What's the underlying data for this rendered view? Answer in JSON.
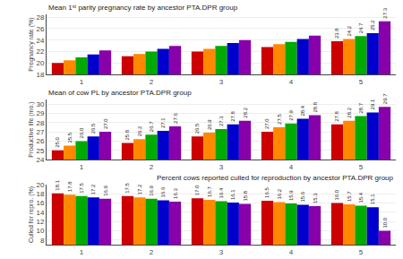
{
  "chart_data": [
    {
      "type": "bar",
      "title": "Mean 1ˢᵗ parity pregnancy rate by ancestor PTA.DPR group",
      "ylabel": "Pregnancy rate (%)",
      "categories": [
        "1",
        "2",
        "3",
        "4",
        "5"
      ],
      "series": [
        {
          "color": "#cc0000",
          "values": [
            20.0,
            21.2,
            22.0,
            22.8,
            23.8
          ],
          "value_labels": [
            null,
            null,
            null,
            null,
            "23.8"
          ]
        },
        {
          "color": "#ff8800",
          "values": [
            20.5,
            21.6,
            22.5,
            23.3,
            24.2
          ],
          "value_labels": [
            null,
            null,
            null,
            null,
            "24.2"
          ]
        },
        {
          "color": "#00aa00",
          "values": [
            21.0,
            22.0,
            23.0,
            23.7,
            24.7
          ],
          "value_labels": [
            null,
            null,
            null,
            null,
            "24.7"
          ]
        },
        {
          "color": "#0000cc",
          "values": [
            21.5,
            22.5,
            23.5,
            24.2,
            25.2
          ],
          "value_labels": [
            null,
            null,
            null,
            null,
            "25.2"
          ]
        },
        {
          "color": "#8800aa",
          "values": [
            22.2,
            23.0,
            24.0,
            24.8,
            27.3
          ],
          "value_labels": [
            null,
            null,
            null,
            null,
            "27.3"
          ]
        }
      ],
      "ylim": [
        18,
        28.5
      ],
      "yticks": [
        18,
        20,
        22,
        24,
        26,
        28
      ],
      "grid": true,
      "data_labels": true
    },
    {
      "type": "bar",
      "title": "Mean of cow PL by ancestor PTA.DPR group",
      "ylabel": "Productive life (mo.)",
      "categories": [
        "1",
        "2",
        "3",
        "4",
        "5"
      ],
      "series": [
        {
          "color": "#cc0000",
          "values": [
            25.0,
            25.8,
            26.5,
            27.0,
            27.8
          ],
          "value_labels": [
            "25.0",
            "25.8",
            "26.5",
            "27.0",
            "27.8"
          ]
        },
        {
          "color": "#ff8800",
          "values": [
            25.5,
            26.2,
            26.9,
            27.5,
            28.2
          ],
          "value_labels": [
            "25.5",
            "26.2",
            "26.9",
            "27.5",
            "28.2"
          ]
        },
        {
          "color": "#00aa00",
          "values": [
            26.0,
            26.7,
            27.3,
            27.9,
            28.7
          ],
          "value_labels": [
            "26.0",
            "26.7",
            "27.3",
            "27.9",
            "28.7"
          ]
        },
        {
          "color": "#0000cc",
          "values": [
            26.5,
            27.1,
            27.8,
            28.4,
            29.1
          ],
          "value_labels": [
            "26.5",
            "27.1",
            "27.8",
            "28.4",
            "29.1"
          ]
        },
        {
          "color": "#8800aa",
          "values": [
            27.0,
            27.6,
            28.2,
            28.8,
            29.7
          ],
          "value_labels": [
            "27.0",
            "27.6",
            "28.2",
            "28.8",
            "29.7"
          ]
        }
      ],
      "ylim": [
        24,
        30.5
      ],
      "yticks": [
        24,
        25,
        26,
        27,
        28,
        29,
        30
      ],
      "grid": true,
      "data_labels": true
    },
    {
      "type": "bar",
      "title": "Percent cows reported culled for reproduction by ancestor PTA.DPR group",
      "ylabel": "Culled for repro. (%)",
      "categories": [
        "1",
        "2",
        "3",
        "4",
        "5"
      ],
      "series": [
        {
          "color": "#cc0000",
          "values": [
            18.1,
            17.5,
            17.0,
            16.5,
            16.0
          ],
          "value_labels": [
            "18.1",
            "17.5",
            "17.0",
            "16.5",
            "16.0"
          ]
        },
        {
          "color": "#ff8800",
          "values": [
            17.8,
            17.2,
            16.7,
            16.2,
            15.7
          ],
          "value_labels": [
            "17.8",
            "17.2",
            "16.7",
            "16.2",
            "15.7"
          ]
        },
        {
          "color": "#00aa00",
          "values": [
            17.5,
            16.9,
            16.4,
            15.9,
            15.4
          ],
          "value_labels": [
            "17.5",
            "16.9",
            "16.4",
            "15.9",
            "15.4"
          ]
        },
        {
          "color": "#0000cc",
          "values": [
            17.2,
            16.6,
            16.1,
            15.6,
            15.1
          ],
          "value_labels": [
            "17.2",
            "16.6",
            "16.1",
            "15.6",
            "15.1"
          ]
        },
        {
          "color": "#8800aa",
          "values": [
            16.9,
            16.3,
            15.8,
            15.3,
            10.0
          ],
          "value_labels": [
            "16.9",
            "16.3",
            "15.8",
            "15.3",
            "10.0"
          ]
        }
      ],
      "ylim": [
        7,
        20
      ],
      "yticks": [
        8,
        10,
        12,
        14,
        16,
        18,
        20
      ],
      "grid": true,
      "data_labels": true
    }
  ]
}
